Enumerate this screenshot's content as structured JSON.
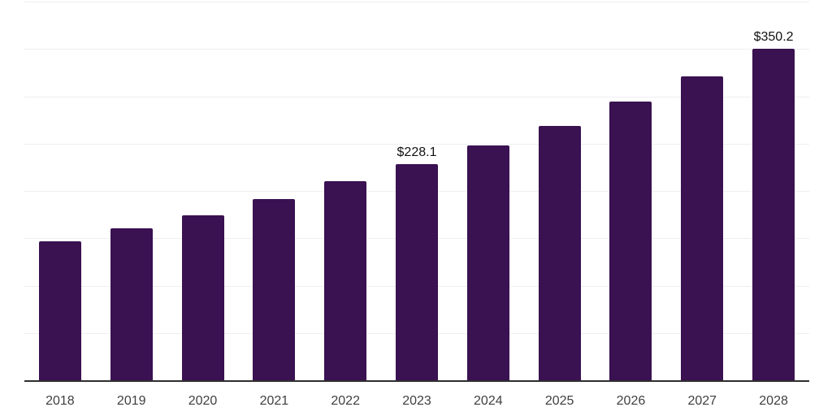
{
  "chart_data": {
    "type": "bar",
    "title": "",
    "xlabel": "",
    "ylabel": "",
    "categories": [
      "2018",
      "2019",
      "2020",
      "2021",
      "2022",
      "2023",
      "2024",
      "2025",
      "2026",
      "2027",
      "2028"
    ],
    "values": [
      147.2,
      160.9,
      174.5,
      191.5,
      210.2,
      228.1,
      247.7,
      268.9,
      294.5,
      320.9,
      350.2
    ],
    "data_labels": [
      "",
      "",
      "",
      "",
      "",
      "$228.1",
      "",
      "",
      "",
      "",
      "$350.2"
    ],
    "ylim": [
      0,
      400
    ],
    "gridline_step": 50,
    "grid": "horizontal-only",
    "legend_position": "none",
    "y_axis_labels_visible": false,
    "colors": {
      "bar": "#3a1151",
      "axis_line": "#2e2e2e",
      "gridline": "#efeff2",
      "tick_label": "#404040",
      "data_label": "#111111"
    }
  }
}
